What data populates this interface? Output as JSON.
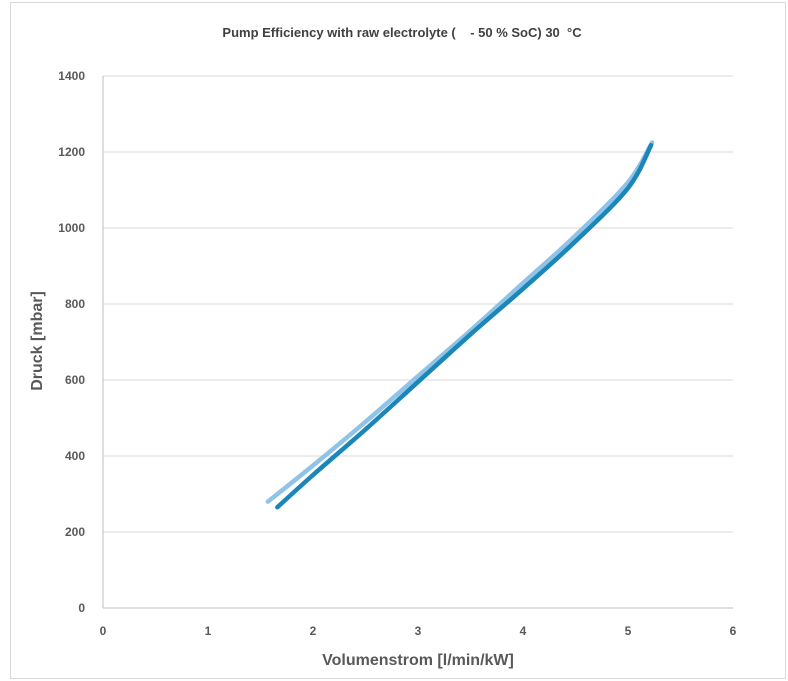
{
  "chart_data": {
    "type": "line",
    "title": "Pump Efficiency with raw electrolyte (    - 50 % SoC) 30  °C",
    "xlabel": "Volumenstrom [l/min/kW]",
    "ylabel": "Druck [mbar]",
    "xlim": [
      0,
      6
    ],
    "ylim": [
      0,
      1400
    ],
    "x_ticks": [
      "0",
      "1",
      "2",
      "3",
      "4",
      "5",
      "6"
    ],
    "y_ticks": [
      "0",
      "200",
      "400",
      "600",
      "800",
      "1000",
      "1200",
      "1400"
    ],
    "grid": "horizontal",
    "legend": "none",
    "series": [
      {
        "color": "#8fc3e8",
        "x": [
          1.57,
          2.0,
          2.5,
          3.0,
          3.5,
          4.0,
          4.5,
          5.0,
          5.23
        ],
        "y": [
          280,
          375,
          490,
          610,
          730,
          855,
          980,
          1120,
          1225
        ]
      },
      {
        "color": "#1b86b8",
        "x": [
          1.66,
          2.0,
          2.5,
          3.0,
          3.5,
          4.0,
          4.5,
          5.0,
          5.22
        ],
        "y": [
          265,
          350,
          470,
          595,
          720,
          840,
          965,
          1105,
          1218
        ]
      }
    ]
  }
}
